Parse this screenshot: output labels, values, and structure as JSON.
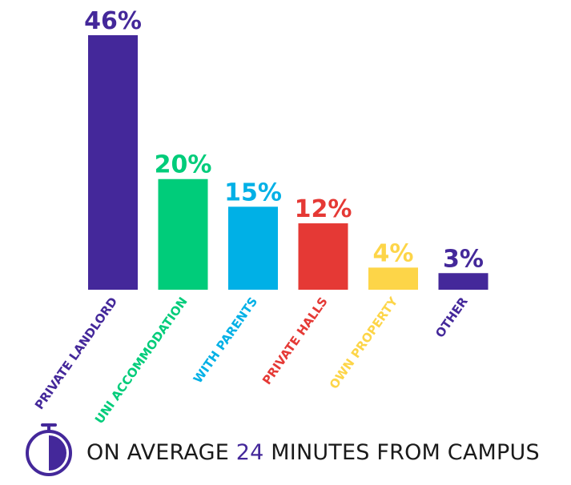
{
  "chart_data": {
    "type": "bar",
    "categories": [
      "PRIVATE LANDLORD",
      "UNI ACCOMMODATION",
      "WITH PARENTS",
      "PRIVATE HALLS",
      "OWN PROPERTY",
      "OTHER"
    ],
    "values": [
      46,
      20,
      15,
      12,
      4,
      3
    ],
    "value_labels": [
      "46%",
      "20%",
      "15%",
      "12%",
      "4%",
      "3%"
    ],
    "colors": [
      "#44289a",
      "#00cc7a",
      "#00b0e6",
      "#e53935",
      "#fdd548",
      "#44289a"
    ],
    "unit": "%",
    "ylim": [
      0,
      46
    ],
    "grid": false,
    "legend": "none"
  },
  "footer": {
    "prefix": "ON AVERAGE ",
    "number": "24",
    "suffix": " MINUTES FROM CAMPUS",
    "icon": "stopwatch-icon",
    "accent_color": "#44289a"
  }
}
